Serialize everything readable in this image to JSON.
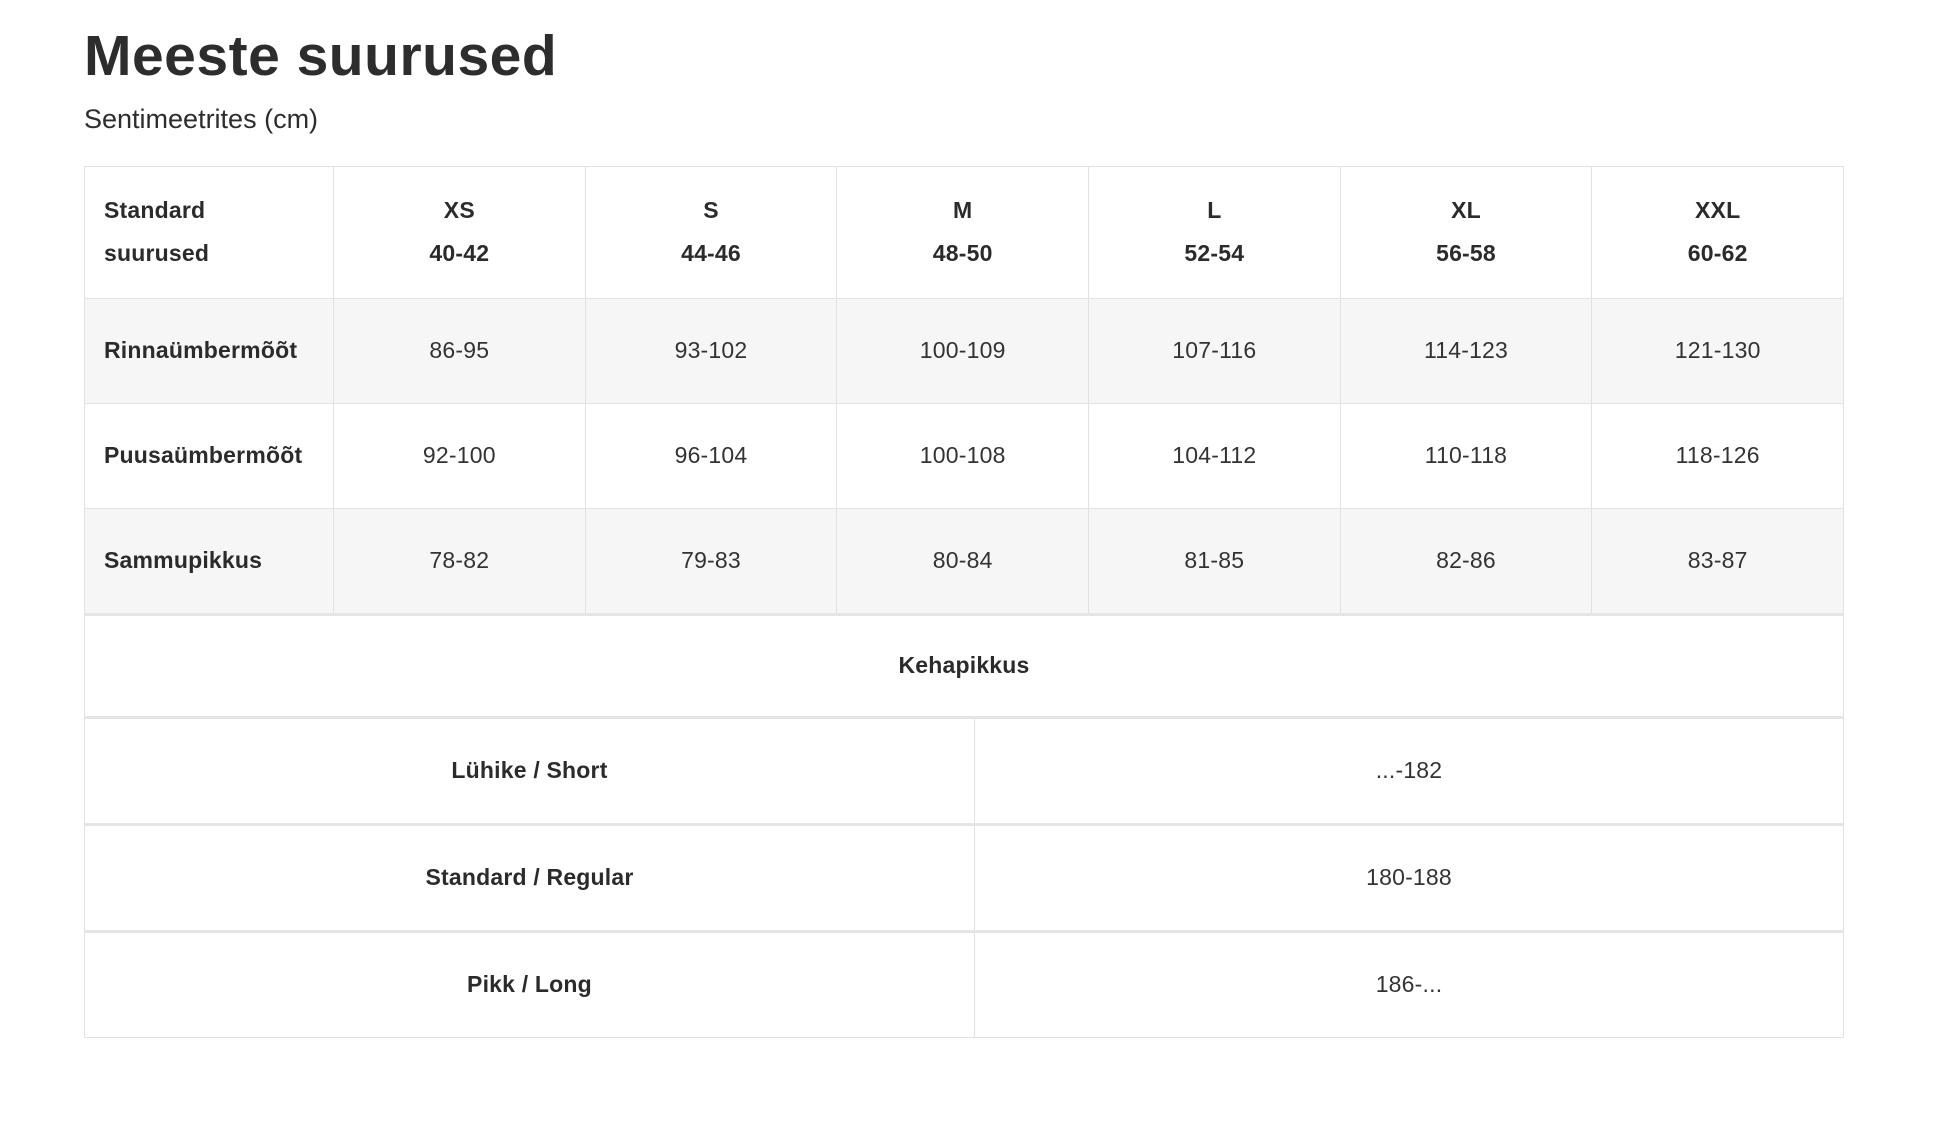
{
  "page": {
    "title": "Meeste suurused",
    "subtitle": "Sentimeetrites (cm)"
  },
  "table": {
    "header": {
      "label_line1": "Standard",
      "label_line2": "suurused",
      "sizes": [
        {
          "name": "XS",
          "range": "40-42"
        },
        {
          "name": "S",
          "range": "44-46"
        },
        {
          "name": "M",
          "range": "48-50"
        },
        {
          "name": "L",
          "range": "52-54"
        },
        {
          "name": "XL",
          "range": "56-58"
        },
        {
          "name": "XXL",
          "range": "60-62"
        }
      ]
    },
    "rows": [
      {
        "label": "Rinnaümbermõõt",
        "values": [
          "86-95",
          "93-102",
          "100-109",
          "107-116",
          "114-123",
          "121-130"
        ]
      },
      {
        "label": "Puusaümbermõõt",
        "values": [
          "92-100",
          "96-104",
          "100-108",
          "104-112",
          "110-118",
          "118-126"
        ]
      },
      {
        "label": "Sammupikkus",
        "values": [
          "78-82",
          "79-83",
          "80-84",
          "81-85",
          "82-86",
          "83-87"
        ]
      }
    ],
    "body_length": {
      "title": "Kehapikkus",
      "rows": [
        {
          "label": "Lühike / Short",
          "value": "...-182"
        },
        {
          "label": "Standard / Regular",
          "value": "180-188"
        },
        {
          "label": "Pikk / Long",
          "value": "186-..."
        }
      ]
    }
  },
  "colors": {
    "text": "#2b2b2b",
    "stripe_bg": "#f6f6f6",
    "border": "#e2e2e2"
  }
}
